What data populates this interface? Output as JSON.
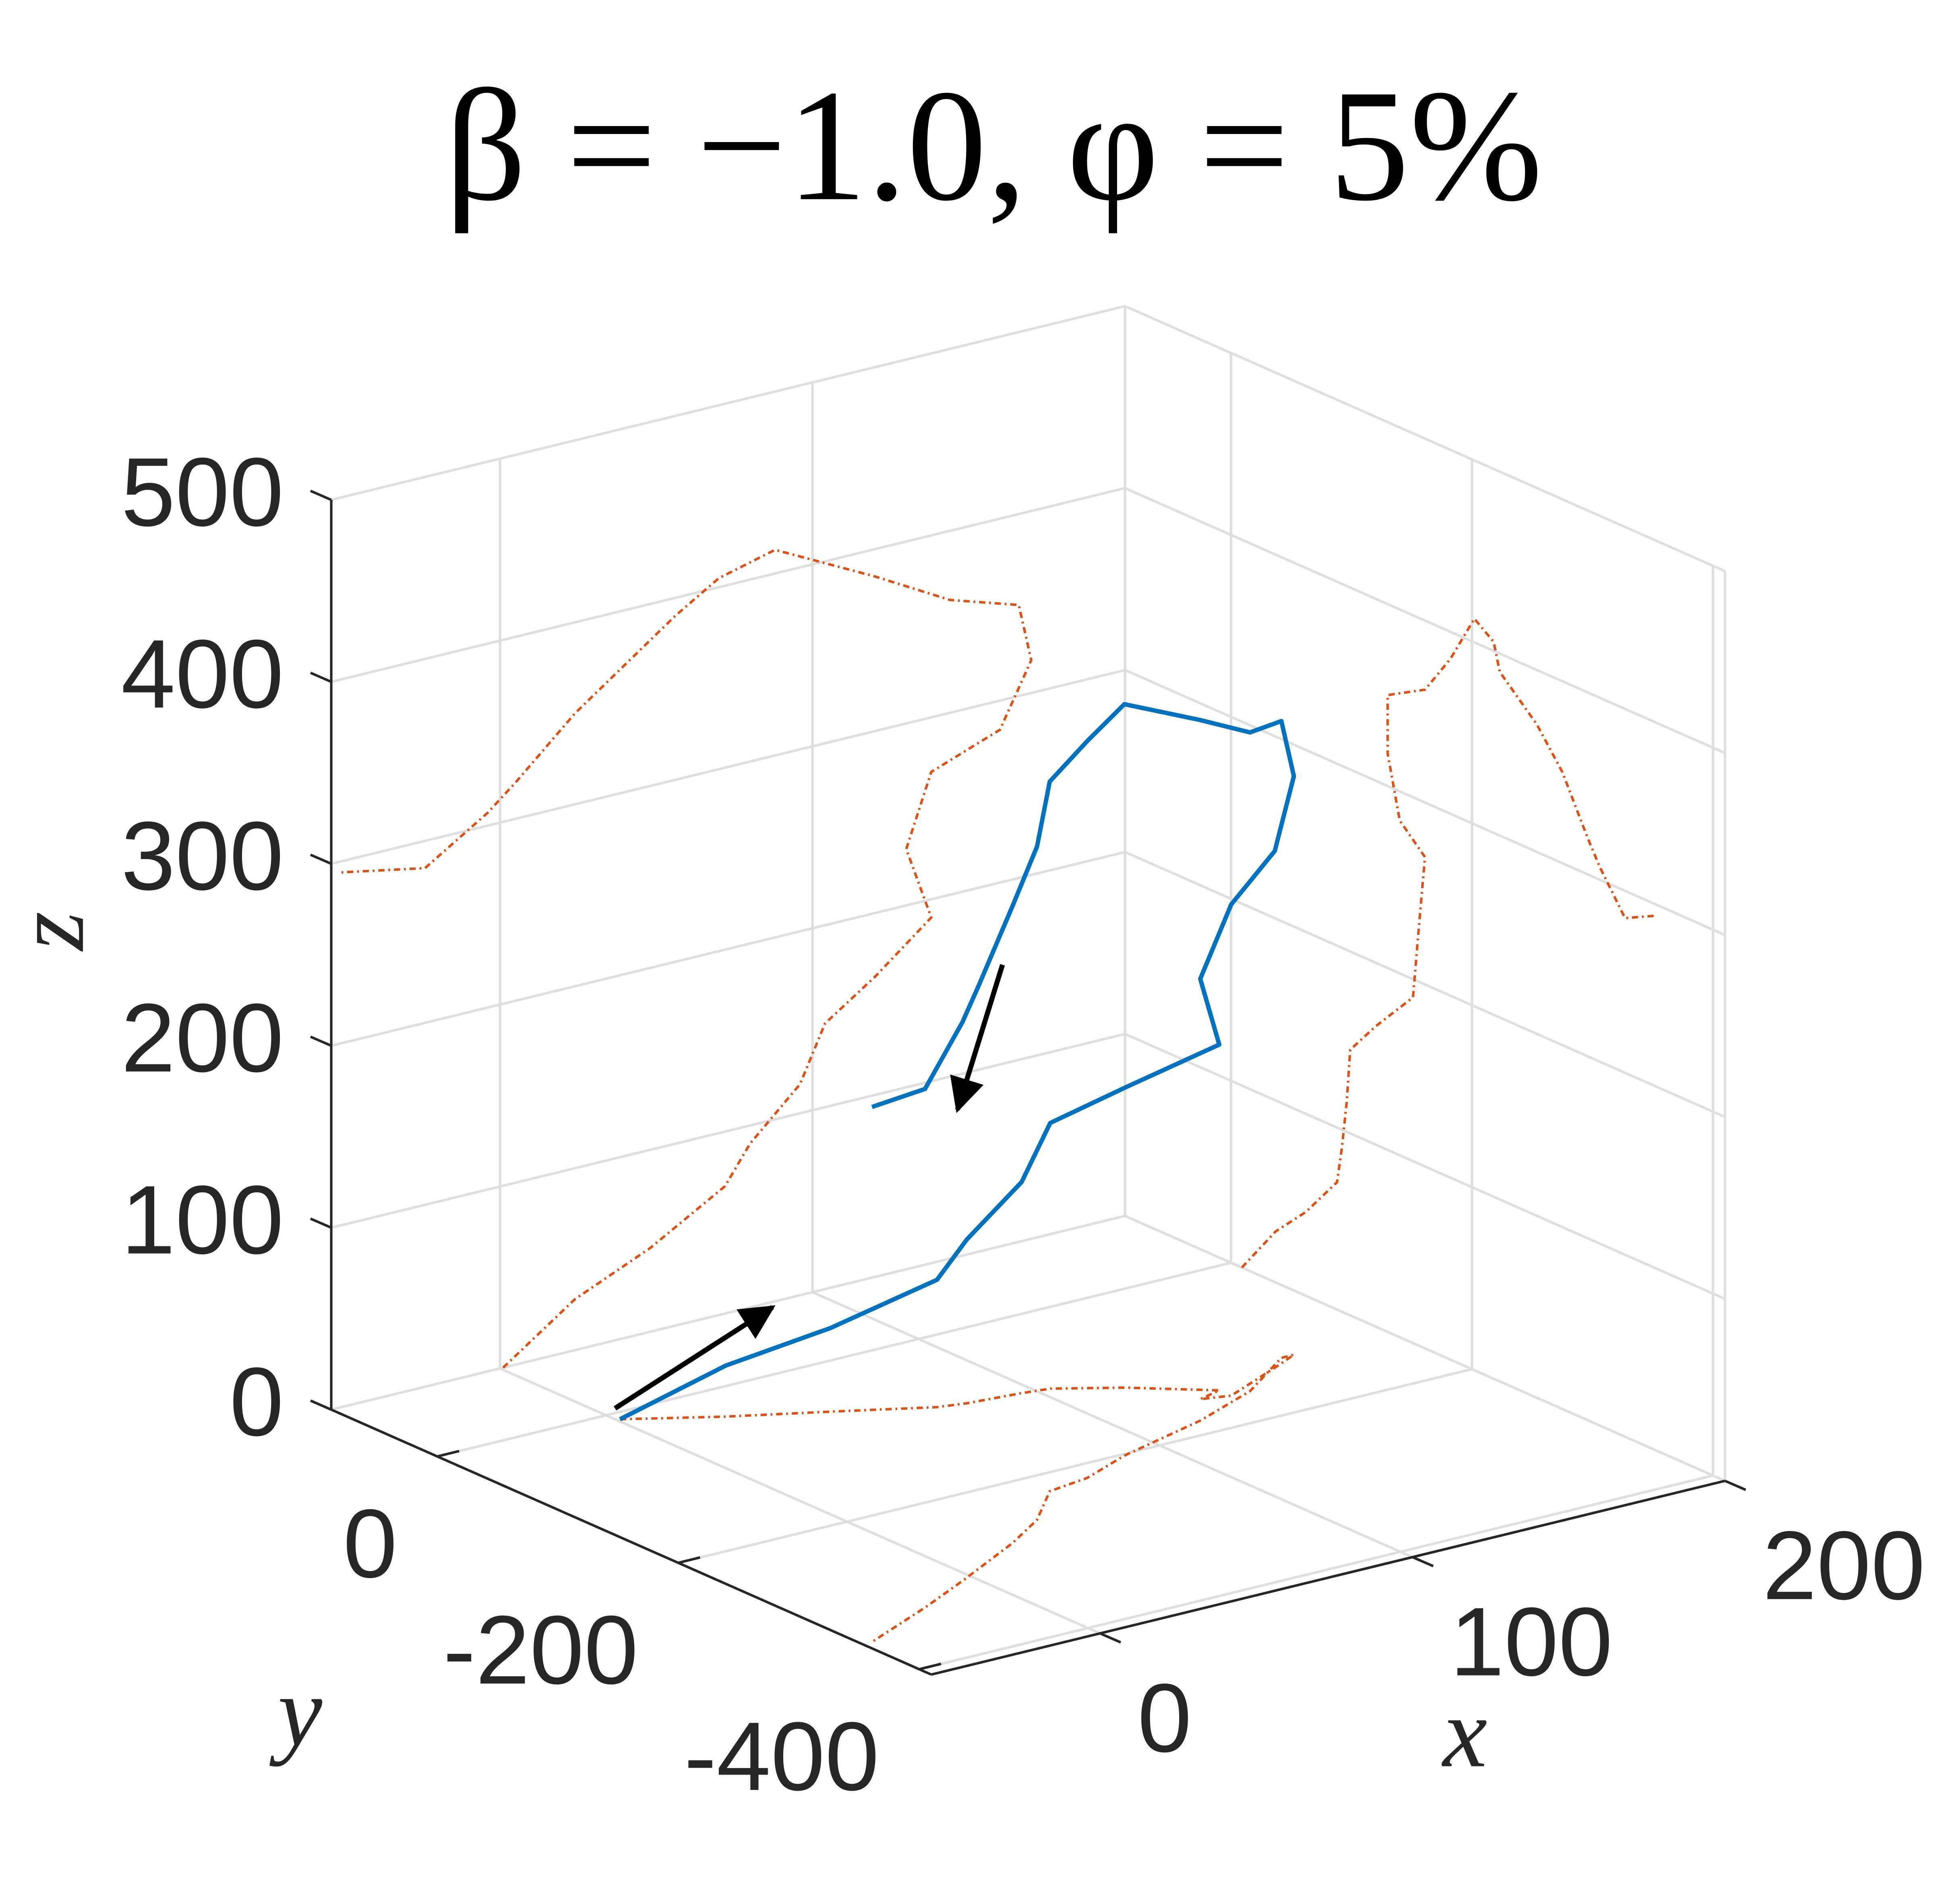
{
  "chart_data": {
    "type": "line3d",
    "title": "β = −1.0, φ = 5%",
    "xlabel": "x",
    "ylabel": "y",
    "zlabel": "z",
    "x": [
      1,
      24,
      48,
      72,
      80,
      96,
      104,
      120,
      138,
      130,
      138,
      160,
      170,
      166,
      144,
      120,
      88,
      70,
      56,
      40,
      24,
      5,
      -4,
      -24,
      -51
    ],
    "y": [
      -9,
      -37,
      -62,
      -88,
      -92,
      -96,
      -99,
      -120,
      -151,
      -156,
      -161,
      -140,
      -130,
      -130,
      -161,
      -182,
      -202,
      -218,
      -223,
      -254,
      -275,
      -296,
      -306,
      -327,
      -353
    ],
    "z": [
      0,
      28,
      46,
      70,
      90,
      116,
      146,
      165,
      190,
      231,
      270,
      284,
      318,
      350,
      362,
      385,
      413,
      405,
      390,
      370,
      350,
      320,
      307,
      285,
      294
    ],
    "color": "#0072bd",
    "projections": true,
    "projection_color": "#d95319",
    "xlim": [
      -54,
      200
    ],
    "ylim": [
      -410,
      88
    ],
    "zlim": [
      0,
      500
    ],
    "xticks": [
      0,
      100,
      200
    ],
    "yticks": [
      -400,
      -200,
      0
    ],
    "zticks": [
      0,
      100,
      200,
      300,
      400,
      500
    ],
    "grid": true
  }
}
